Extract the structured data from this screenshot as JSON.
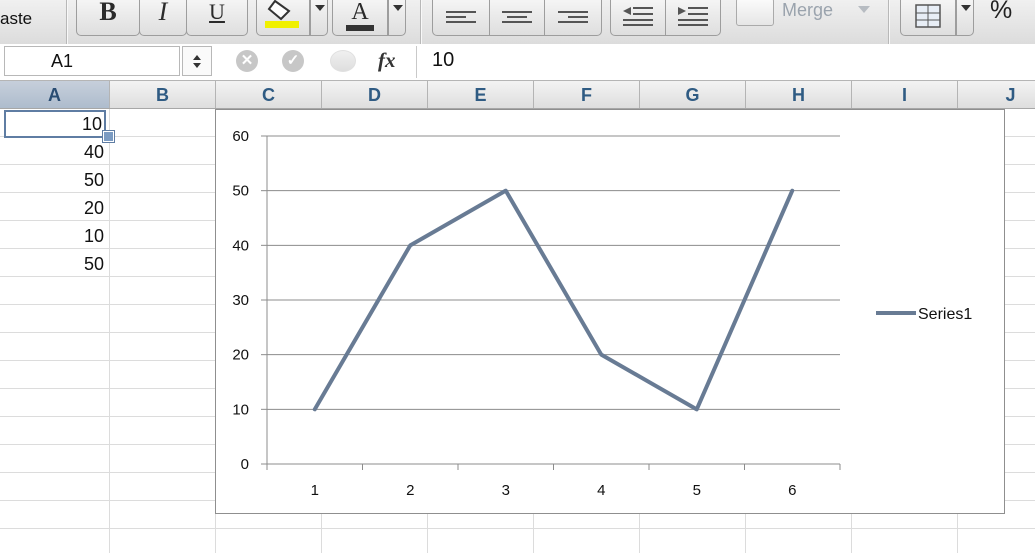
{
  "toolbar": {
    "paste_label": "aste",
    "bold_label": "B",
    "italic_label": "I",
    "underline_label": "U",
    "font_color_label": "A",
    "merge_label": "Merge",
    "percent_label": "%"
  },
  "formula_bar": {
    "name_box": "A1",
    "fx_label": "fx",
    "value": "10"
  },
  "columns": [
    "A",
    "B",
    "C",
    "D",
    "E",
    "F",
    "G",
    "H",
    "I",
    "J"
  ],
  "selected_column": "A",
  "cells": {
    "A": [
      "10",
      "40",
      "50",
      "20",
      "10",
      "50"
    ]
  },
  "active_cell": "A1",
  "colors": {
    "series_line": "#687b94",
    "header_text": "#2f5b83",
    "selection_border": "#5f7da3",
    "highlight_yellow": "#f0f000"
  },
  "chart_data": {
    "type": "line",
    "categories": [
      "1",
      "2",
      "3",
      "4",
      "5",
      "6"
    ],
    "series": [
      {
        "name": "Series1",
        "values": [
          10,
          40,
          50,
          20,
          10,
          50
        ]
      }
    ],
    "yticks": [
      "0",
      "10",
      "20",
      "30",
      "40",
      "50",
      "60"
    ],
    "ylim": [
      0,
      60
    ],
    "grid": true,
    "legend": "right",
    "title": "",
    "xlabel": "",
    "ylabel": ""
  }
}
